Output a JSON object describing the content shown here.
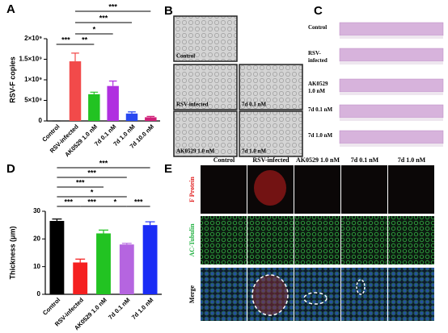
{
  "chart_data": [
    {
      "type": "bar",
      "panel_label": "A",
      "ylabel": "RSV-F copies",
      "categories": [
        "Control",
        "RSV-infected",
        "AK0529 1.0 nM",
        "7d 0.1 nM",
        "7d 1.0 nM",
        "7d 10.0 nM"
      ],
      "values": [
        0,
        1450000000,
        650000000,
        850000000,
        180000000,
        90000000
      ],
      "errors": [
        0,
        200000000,
        50000000,
        120000000,
        40000000,
        20000000
      ],
      "colors": [
        "#111111",
        "#f24a4a",
        "#22c322",
        "#b030e0",
        "#2848f0",
        "#d02078"
      ],
      "ylim": [
        0,
        2000000000
      ],
      "yticks": [
        0,
        {
          "value": 500000000,
          "label": "5×10⁸"
        },
        {
          "value": 1000000000,
          "label": "1×10⁹"
        },
        {
          "value": 1500000000,
          "label": "1.5×10⁹"
        },
        {
          "value": 2000000000,
          "label": "2×10⁹"
        }
      ],
      "annotations": [
        "***",
        "***",
        "*",
        "***",
        "**"
      ]
    },
    {
      "type": "bar",
      "panel_label": "D",
      "ylabel": "Thickness (μm)",
      "categories": [
        "Control",
        "RSV-infected",
        "AK0529 1.0 nM",
        "7d 0.1 nM",
        "7d 1.0 nM"
      ],
      "values": [
        26.5,
        11.5,
        22,
        18,
        25
      ],
      "errors": [
        0.7,
        1.2,
        1.2,
        0.4,
        1.2
      ],
      "colors": [
        "#000000",
        "#f52020",
        "#22c322",
        "#b565e0",
        "#1a2cf5"
      ],
      "ylim": [
        0,
        30
      ],
      "yticks": [
        0,
        10,
        20,
        30
      ],
      "annotations": [
        "***",
        "***",
        "***",
        "*",
        "***",
        "***",
        "*",
        "***"
      ]
    }
  ],
  "panel_b": {
    "label": "B",
    "captions": [
      "Control",
      "RSV-infected",
      "7d 0.1 nM",
      "AK0529 1.0 nM",
      "7d 1.0 nM"
    ]
  },
  "panel_c": {
    "label": "C",
    "captions": [
      "Control",
      "RSV-\ninfected",
      "AK0529\n1.0 nM",
      "7d 0.1 nM",
      "7d 1.0 nM"
    ]
  },
  "panel_e": {
    "label": "E",
    "columns": [
      "Control",
      "RSV-infected",
      "AK0529 1.0 nM",
      "7d 0.1 nM",
      "7d 1.0 nM"
    ],
    "rows": [
      "F Protein",
      "AC-Tubulin",
      "Merge"
    ]
  }
}
